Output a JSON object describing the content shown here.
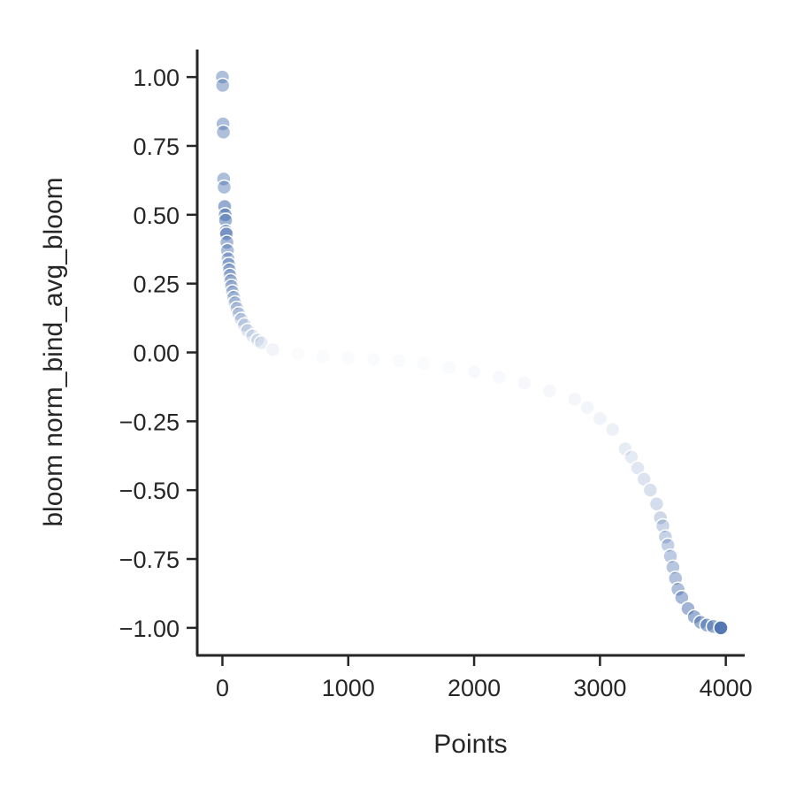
{
  "chart_data": {
    "type": "scatter",
    "title": "",
    "xlabel": "Points",
    "ylabel": "bloom norm_bind_avg_bloom",
    "xlim": [
      -200,
      4150
    ],
    "ylim": [
      -1.1,
      1.1
    ],
    "xticks": [
      0,
      1000,
      2000,
      3000,
      4000
    ],
    "xtick_labels": [
      "0",
      "1000",
      "2000",
      "3000",
      "4000"
    ],
    "yticks": [
      1.0,
      0.75,
      0.5,
      0.25,
      0.0,
      -0.25,
      -0.5,
      -0.75,
      -1.0
    ],
    "ytick_labels": [
      "1.00",
      "0.75",
      "0.50",
      "0.25",
      "0.00",
      "−0.25",
      "−0.50",
      "−0.75",
      "−1.00"
    ],
    "grid": false,
    "marker_color": "#4c72b0",
    "series": [
      {
        "name": "",
        "points": [
          [
            0,
            1.0
          ],
          [
            2,
            0.97
          ],
          [
            5,
            0.83
          ],
          [
            8,
            0.8
          ],
          [
            10,
            0.63
          ],
          [
            14,
            0.6
          ],
          [
            18,
            0.53
          ],
          [
            22,
            0.5
          ],
          [
            25,
            0.48
          ],
          [
            28,
            0.44
          ],
          [
            32,
            0.43
          ],
          [
            36,
            0.4
          ],
          [
            40,
            0.37
          ],
          [
            45,
            0.34
          ],
          [
            50,
            0.32
          ],
          [
            55,
            0.3
          ],
          [
            60,
            0.28
          ],
          [
            66,
            0.26
          ],
          [
            72,
            0.24
          ],
          [
            80,
            0.22
          ],
          [
            90,
            0.2
          ],
          [
            100,
            0.18
          ],
          [
            115,
            0.16
          ],
          [
            130,
            0.14
          ],
          [
            150,
            0.12
          ],
          [
            175,
            0.1
          ],
          [
            200,
            0.08
          ],
          [
            240,
            0.06
          ],
          [
            280,
            0.045
          ],
          [
            310,
            0.035
          ],
          [
            400,
            0.01
          ],
          [
            600,
            -0.005
          ],
          [
            800,
            -0.015
          ],
          [
            1000,
            -0.02
          ],
          [
            1200,
            -0.025
          ],
          [
            1400,
            -0.03
          ],
          [
            1600,
            -0.04
          ],
          [
            1800,
            -0.055
          ],
          [
            2000,
            -0.07
          ],
          [
            2200,
            -0.09
          ],
          [
            2400,
            -0.11
          ],
          [
            2600,
            -0.14
          ],
          [
            2800,
            -0.17
          ],
          [
            2900,
            -0.2
          ],
          [
            3000,
            -0.24
          ],
          [
            3100,
            -0.28
          ],
          [
            3200,
            -0.35
          ],
          [
            3250,
            -0.38
          ],
          [
            3300,
            -0.42
          ],
          [
            3350,
            -0.46
          ],
          [
            3400,
            -0.5
          ],
          [
            3450,
            -0.55
          ],
          [
            3480,
            -0.6
          ],
          [
            3500,
            -0.63
          ],
          [
            3520,
            -0.67
          ],
          [
            3540,
            -0.7
          ],
          [
            3560,
            -0.74
          ],
          [
            3580,
            -0.78
          ],
          [
            3600,
            -0.82
          ],
          [
            3620,
            -0.86
          ],
          [
            3650,
            -0.89
          ],
          [
            3700,
            -0.93
          ],
          [
            3750,
            -0.96
          ],
          [
            3800,
            -0.98
          ],
          [
            3850,
            -0.99
          ],
          [
            3900,
            -0.995
          ],
          [
            3960,
            -1.0
          ]
        ]
      }
    ]
  }
}
